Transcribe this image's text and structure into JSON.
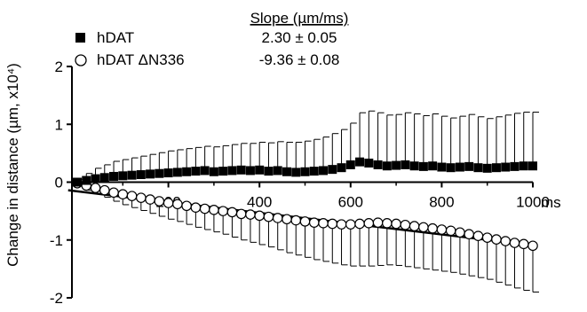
{
  "chart_data": {
    "type": "scatter",
    "xlabel": "",
    "x_unit": "ms",
    "ylabel": "Change in distance (µm, x10⁴)",
    "xlim": [
      0,
      1000
    ],
    "ylim": [
      -2,
      2
    ],
    "x_ticks": [
      "200",
      "400",
      "600",
      "800",
      "1000"
    ],
    "y_ticks": [
      "2",
      "1",
      "0",
      "-1",
      "-2"
    ],
    "grid": false,
    "legend_position": "top-left",
    "slope_header": "Slope (µm/ms)",
    "series": [
      {
        "name": "hDAT",
        "marker": "filled-square",
        "color": "#000000",
        "slope_label": "2.30 ± 0.05",
        "x": [
          0,
          20,
          40,
          60,
          80,
          100,
          120,
          140,
          160,
          180,
          200,
          220,
          240,
          260,
          280,
          300,
          320,
          340,
          360,
          380,
          400,
          420,
          440,
          460,
          480,
          500,
          520,
          540,
          560,
          580,
          600,
          620,
          640,
          660,
          680,
          700,
          720,
          740,
          760,
          780,
          800,
          820,
          840,
          860,
          880,
          900,
          920,
          940,
          960,
          980,
          1000
        ],
        "y": [
          0.0,
          0.03,
          0.06,
          0.08,
          0.1,
          0.11,
          0.12,
          0.13,
          0.14,
          0.15,
          0.16,
          0.17,
          0.18,
          0.19,
          0.2,
          0.18,
          0.19,
          0.2,
          0.21,
          0.2,
          0.21,
          0.19,
          0.2,
          0.18,
          0.17,
          0.18,
          0.19,
          0.2,
          0.22,
          0.25,
          0.3,
          0.35,
          0.33,
          0.3,
          0.28,
          0.29,
          0.3,
          0.28,
          0.27,
          0.28,
          0.26,
          0.25,
          0.26,
          0.27,
          0.25,
          0.24,
          0.25,
          0.26,
          0.27,
          0.28,
          0.28
        ],
        "error_up": [
          0.05,
          0.12,
          0.18,
          0.22,
          0.26,
          0.28,
          0.3,
          0.32,
          0.34,
          0.36,
          0.38,
          0.39,
          0.4,
          0.41,
          0.42,
          0.43,
          0.44,
          0.45,
          0.46,
          0.47,
          0.48,
          0.49,
          0.5,
          0.51,
          0.52,
          0.53,
          0.55,
          0.58,
          0.62,
          0.66,
          0.72,
          0.85,
          0.9,
          0.9,
          0.88,
          0.88,
          0.9,
          0.9,
          0.88,
          0.9,
          0.88,
          0.86,
          0.88,
          0.9,
          0.88,
          0.86,
          0.88,
          0.9,
          0.92,
          0.93,
          0.93
        ]
      },
      {
        "name": "hDAT ΔN336",
        "marker": "open-circle",
        "color": "#000000",
        "slope_label": "-9.36 ± 0.08",
        "x": [
          0,
          20,
          40,
          60,
          80,
          100,
          120,
          140,
          160,
          180,
          200,
          220,
          240,
          260,
          280,
          300,
          320,
          340,
          360,
          380,
          400,
          420,
          440,
          460,
          480,
          500,
          520,
          540,
          560,
          580,
          600,
          620,
          640,
          660,
          680,
          700,
          720,
          740,
          760,
          780,
          800,
          820,
          840,
          860,
          880,
          900,
          920,
          940,
          960,
          980,
          1000
        ],
        "y": [
          -0.02,
          -0.06,
          -0.1,
          -0.14,
          -0.18,
          -0.21,
          -0.24,
          -0.27,
          -0.3,
          -0.33,
          -0.36,
          -0.38,
          -0.41,
          -0.44,
          -0.46,
          -0.48,
          -0.5,
          -0.52,
          -0.55,
          -0.56,
          -0.58,
          -0.6,
          -0.62,
          -0.64,
          -0.66,
          -0.68,
          -0.7,
          -0.71,
          -0.72,
          -0.73,
          -0.73,
          -0.72,
          -0.71,
          -0.7,
          -0.71,
          -0.72,
          -0.74,
          -0.76,
          -0.78,
          -0.8,
          -0.82,
          -0.84,
          -0.87,
          -0.9,
          -0.93,
          -0.96,
          -0.99,
          -1.02,
          -1.05,
          -1.07,
          -1.1
        ],
        "error_down": [
          0.05,
          0.08,
          0.1,
          0.12,
          0.15,
          0.18,
          0.2,
          0.22,
          0.24,
          0.26,
          0.28,
          0.3,
          0.32,
          0.34,
          0.36,
          0.38,
          0.4,
          0.43,
          0.45,
          0.48,
          0.5,
          0.52,
          0.55,
          0.58,
          0.6,
          0.62,
          0.64,
          0.66,
          0.68,
          0.7,
          0.72,
          0.73,
          0.74,
          0.74,
          0.72,
          0.72,
          0.72,
          0.72,
          0.72,
          0.72,
          0.72,
          0.72,
          0.72,
          0.72,
          0.72,
          0.72,
          0.74,
          0.76,
          0.78,
          0.8,
          0.8
        ]
      }
    ],
    "fit_line": {
      "x": [
        -20,
        1000
      ],
      "y": [
        -0.14,
        -1.09
      ]
    }
  }
}
